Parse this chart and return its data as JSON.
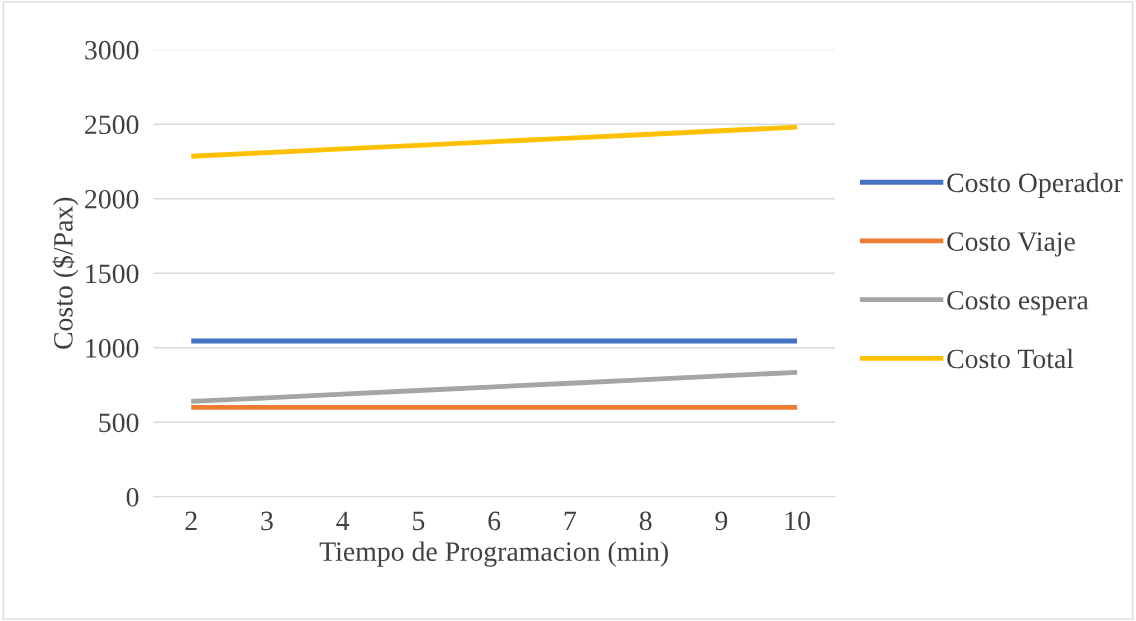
{
  "chart_data": {
    "type": "line",
    "xlabel": "Tiempo de Programacion (min)",
    "ylabel": "Costo ($/Pax)",
    "categories": [
      "2",
      "3",
      "4",
      "5",
      "6",
      "7",
      "8",
      "9",
      "10"
    ],
    "series": [
      {
        "name": "Costo Operador",
        "color": "#4472c4",
        "values": [
          1045,
          1045,
          1045,
          1045,
          1045,
          1045,
          1045,
          1045,
          1045
        ]
      },
      {
        "name": "Costo Viaje",
        "color": "#ed7d31",
        "values": [
          600,
          600,
          600,
          600,
          600,
          600,
          600,
          600,
          600
        ]
      },
      {
        "name": "Costo espera",
        "color": "#a5a5a5",
        "values": [
          640,
          664,
          689,
          713,
          738,
          762,
          786,
          811,
          835
        ]
      },
      {
        "name": "Costo Total",
        "color": "#ffc000",
        "values": [
          2285,
          2309,
          2334,
          2358,
          2383,
          2407,
          2431,
          2456,
          2480
        ]
      }
    ],
    "ylim": [
      0,
      3000
    ],
    "yticks": [
      0,
      500,
      1000,
      1500,
      2000,
      2500,
      3000
    ],
    "grid": "y",
    "legend": "right",
    "marker": "none",
    "line_style": "solid"
  }
}
